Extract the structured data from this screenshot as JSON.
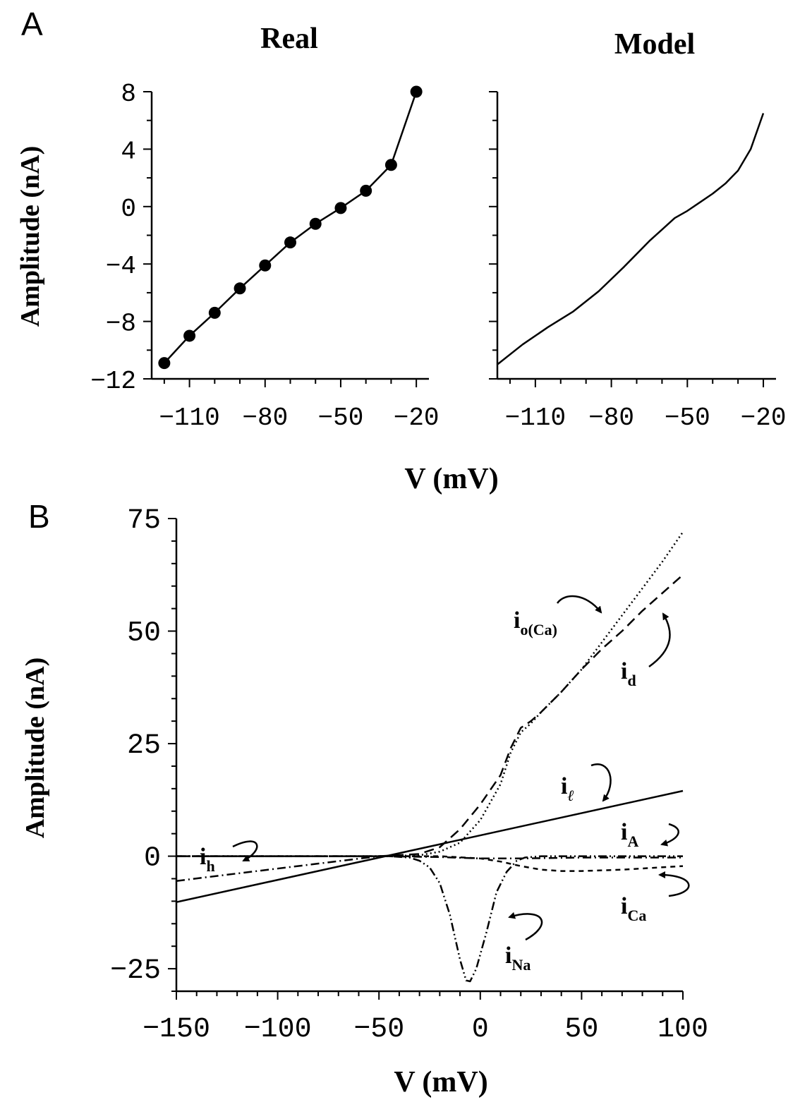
{
  "panel_labels": {
    "a": "A",
    "b": "B"
  },
  "chart_data": [
    {
      "panel": "A",
      "type": "line",
      "title": "Real",
      "xlabel": "V (mV)",
      "ylabel": "Amplitude (nA)",
      "xlim": [
        -125,
        -15
      ],
      "ylim": [
        -12,
        8
      ],
      "xticks": [
        -110,
        -80,
        -50,
        -20
      ],
      "xtick_labels": [
        "−110",
        "−80",
        "−50",
        "−20"
      ],
      "yticks": [
        -12,
        -8,
        -4,
        0,
        4,
        8
      ],
      "ytick_labels": [
        "−12",
        "−8",
        "−4",
        "0",
        "4",
        "8"
      ],
      "markers": true,
      "series": [
        {
          "x": [
            -120,
            -110,
            -100,
            -90,
            -80,
            -70,
            -60,
            -50,
            -40,
            -30,
            -20
          ],
          "y": [
            -10.9,
            -9.0,
            -7.4,
            -5.7,
            -4.1,
            -2.5,
            -1.2,
            -0.1,
            1.1,
            2.9,
            8.0
          ]
        }
      ]
    },
    {
      "panel": "A",
      "type": "line",
      "title": "Model",
      "xlabel": "V (mV)",
      "xlim": [
        -125,
        -15
      ],
      "ylim": [
        -12,
        8
      ],
      "xticks": [
        -110,
        -80,
        -50,
        -20
      ],
      "xtick_labels": [
        "−110",
        "−80",
        "−50",
        "−20"
      ],
      "series": [
        {
          "x": [
            -125,
            -115,
            -105,
            -95,
            -85,
            -75,
            -65,
            -60,
            -55,
            -50,
            -45,
            -40,
            -35,
            -30,
            -25,
            -20
          ],
          "y": [
            -11.0,
            -9.6,
            -8.4,
            -7.3,
            -5.9,
            -4.2,
            -2.4,
            -1.6,
            -0.8,
            -0.3,
            0.3,
            0.9,
            1.6,
            2.5,
            4.0,
            6.5
          ]
        }
      ]
    },
    {
      "panel": "B",
      "type": "line",
      "xlabel": "V (mV)",
      "ylabel": "Amplitude (nA)",
      "xlim": [
        -150,
        100
      ],
      "ylim": [
        -30,
        75
      ],
      "xticks": [
        -150,
        -100,
        -50,
        0,
        50,
        100
      ],
      "xtick_labels": [
        "−150",
        "−100",
        "−50",
        "0",
        "50",
        "100"
      ],
      "yticks": [
        -25,
        0,
        25,
        50,
        75
      ],
      "ytick_labels": [
        "−25",
        "0",
        "25",
        "50",
        "75"
      ],
      "series": [
        {
          "name": "io(Ca)",
          "style": "dotted",
          "x": [
            -150,
            -50,
            -30,
            -20,
            -10,
            0,
            10,
            15,
            20,
            25,
            30,
            40,
            50,
            60,
            70,
            80,
            90,
            100
          ],
          "y": [
            0,
            0,
            0.2,
            1,
            3,
            8,
            16,
            23,
            27.5,
            29.5,
            32,
            36.5,
            41.5,
            47.5,
            53.5,
            59.5,
            65.5,
            72
          ]
        },
        {
          "name": "id",
          "style": "dashed",
          "x": [
            -150,
            -50,
            -30,
            -20,
            -10,
            0,
            10,
            15,
            20,
            25,
            30,
            40,
            50,
            60,
            70,
            80,
            90,
            100
          ],
          "y": [
            0,
            0,
            0.5,
            2,
            6,
            11.5,
            18,
            24,
            28.5,
            30,
            32,
            36.5,
            41.5,
            46,
            50,
            54.5,
            58.5,
            62.5
          ]
        },
        {
          "name": "il",
          "style": "solid",
          "x": [
            -150,
            100
          ],
          "y": [
            -10.2,
            14.5
          ]
        },
        {
          "name": "iA",
          "style": "dash-dot",
          "x": [
            -150,
            -50,
            -20,
            0,
            20,
            50,
            100
          ],
          "y": [
            0,
            0,
            -0.2,
            -0.5,
            -0.5,
            -0.3,
            -0.3
          ]
        },
        {
          "name": "iCa",
          "style": "dashed-fine",
          "x": [
            -150,
            -50,
            -20,
            0,
            10,
            20,
            30,
            40,
            50,
            70,
            100
          ],
          "y": [
            0,
            0,
            0,
            -0.5,
            -1.2,
            -2.2,
            -3.0,
            -3.3,
            -3.3,
            -3.0,
            -2.2
          ]
        },
        {
          "name": "ih",
          "style": "dash-dot",
          "x": [
            -150,
            -130,
            -110,
            -90,
            -70,
            -50,
            -40,
            -30
          ],
          "y": [
            -5.5,
            -4.4,
            -3.3,
            -2.2,
            -1.1,
            0,
            0,
            0
          ]
        },
        {
          "name": "iNa",
          "style": "dash-dot-dot",
          "x": [
            -150,
            -45,
            -35,
            -30,
            -25,
            -20,
            -15,
            -10,
            -7,
            -5,
            -2,
            3,
            8,
            13,
            18,
            22,
            30,
            100
          ],
          "y": [
            0,
            0,
            -0.3,
            -1,
            -2.5,
            -6,
            -13,
            -23,
            -27.6,
            -27.8,
            -25,
            -17,
            -8,
            -3.5,
            -1,
            -0.3,
            0,
            0
          ]
        }
      ],
      "annotations": [
        {
          "label": "i",
          "sub": "o(Ca)"
        },
        {
          "label": "i",
          "sub": "d"
        },
        {
          "label": "i",
          "sub": "ℓ"
        },
        {
          "label": "i",
          "sub": "A"
        },
        {
          "label": "i",
          "sub": "Ca"
        },
        {
          "label": "i",
          "sub": "h"
        },
        {
          "label": "i",
          "sub": "Na"
        }
      ]
    }
  ]
}
